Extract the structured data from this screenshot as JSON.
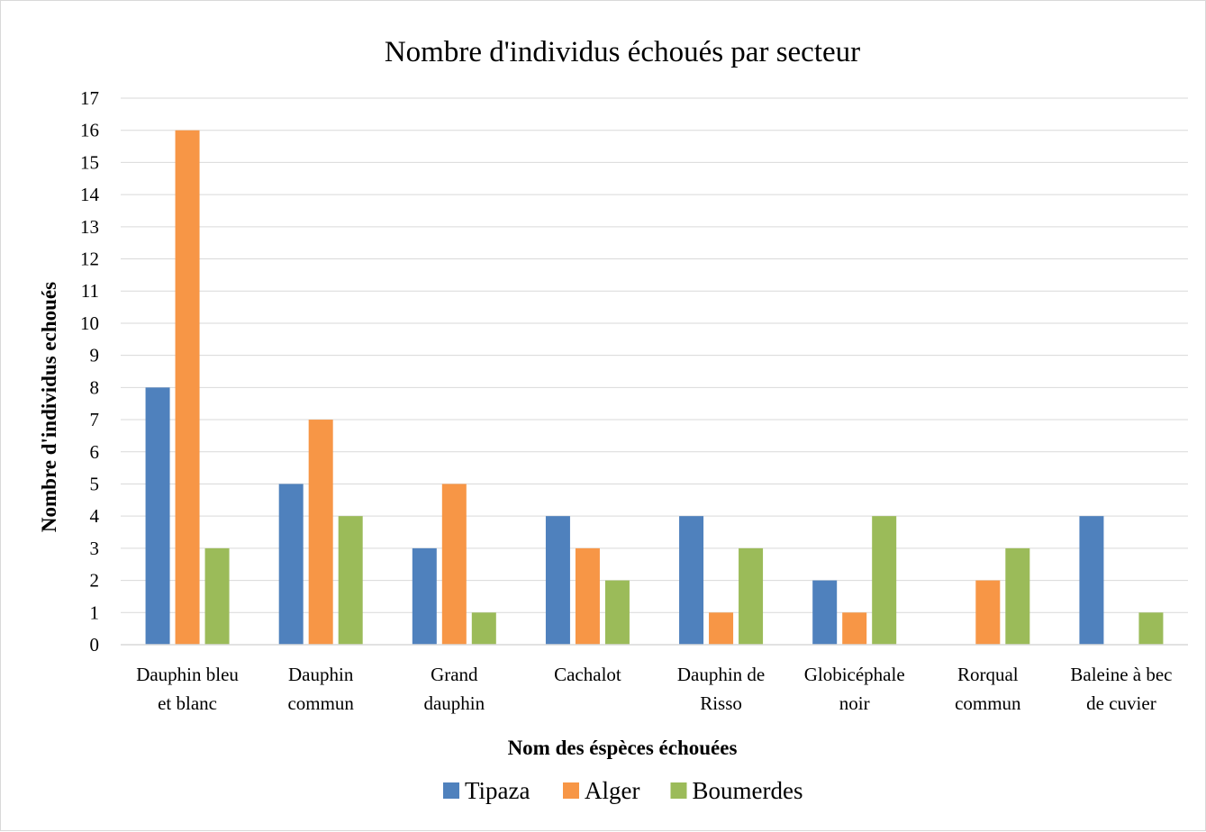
{
  "chart_data": {
    "type": "bar",
    "title": "Nombre d'individus échoués par secteur",
    "xlabel": "Nom des éspèces échouées",
    "ylabel": "Nombre d'individus echoués",
    "ylim": [
      0,
      17
    ],
    "ytick_step": 1,
    "grid": true,
    "legend_position": "bottom",
    "categories": [
      [
        "Dauphin bleu",
        "et blanc"
      ],
      [
        "Dauphin",
        "commun"
      ],
      [
        "Grand",
        "dauphin"
      ],
      [
        "Cachalot"
      ],
      [
        "Dauphin de",
        "Risso"
      ],
      [
        "Globicéphale",
        "noir"
      ],
      [
        "Rorqual",
        "commun"
      ],
      [
        "Baleine à bec",
        "de cuvier"
      ]
    ],
    "series": [
      {
        "name": "Tipaza",
        "color": "#4f81bd",
        "values": [
          8,
          5,
          3,
          4,
          4,
          2,
          0,
          4
        ]
      },
      {
        "name": "Alger",
        "color": "#f79646",
        "values": [
          16,
          7,
          5,
          3,
          1,
          1,
          2,
          0
        ]
      },
      {
        "name": "Boumerdes",
        "color": "#9bbb59",
        "values": [
          3,
          4,
          1,
          2,
          3,
          4,
          3,
          1
        ]
      }
    ]
  }
}
